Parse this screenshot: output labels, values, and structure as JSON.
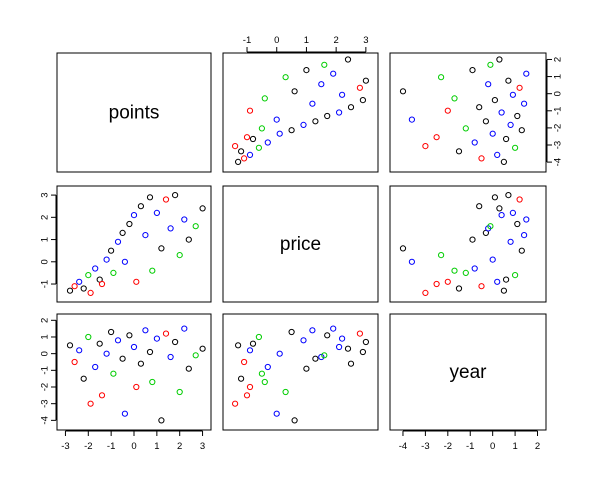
{
  "chart_data": {
    "type": "scatter",
    "kind": "scatterplot-matrix",
    "variables": [
      "points",
      "price",
      "year"
    ],
    "diagonal_labels": {
      "points": "points",
      "price": "price",
      "year": "year"
    },
    "ranges": {
      "points": [
        -3.1,
        3.1
      ],
      "price": [
        -1.6,
        3.2
      ],
      "year": [
        -4.3,
        2.1
      ]
    },
    "ticks": {
      "points": {
        "values": [
          -3,
          -2,
          -1,
          0,
          1,
          2,
          3
        ],
        "labels": [
          "-3",
          "-2",
          "-1",
          "0",
          "1",
          "2",
          "3"
        ]
      },
      "price": {
        "values": [
          -1,
          0,
          1,
          2,
          3
        ],
        "labels": [
          "-1",
          "0",
          "1",
          "2",
          "3"
        ]
      },
      "year": {
        "values": [
          -4,
          -3,
          -2,
          -1,
          0,
          1,
          2
        ],
        "labels": [
          "-4",
          "-3",
          "-2",
          "-1",
          "0",
          "1",
          "2"
        ]
      }
    },
    "axes_shown": {
      "bottom": [
        "points",
        null,
        "year"
      ],
      "top": [
        null,
        "price",
        null
      ],
      "left": [
        null,
        "price",
        "year"
      ],
      "right": [
        "year",
        null,
        null
      ]
    },
    "point_colors": [
      "#000000",
      "#ff0000",
      "#00cd00",
      "#0000ff"
    ],
    "marker": "open-circle",
    "grid": false,
    "legend": "none",
    "samples": [
      {
        "points": -2.8,
        "price": -1.3,
        "year": 0.5,
        "group": 0
      },
      {
        "points": -2.6,
        "price": -1.1,
        "year": -0.5,
        "group": 1
      },
      {
        "points": -2.4,
        "price": -0.9,
        "year": 0.2,
        "group": 3
      },
      {
        "points": -2.2,
        "price": -1.2,
        "year": -1.5,
        "group": 0
      },
      {
        "points": -2.0,
        "price": -0.6,
        "year": 1.0,
        "group": 2
      },
      {
        "points": -1.9,
        "price": -1.4,
        "year": -3.0,
        "group": 1
      },
      {
        "points": -1.7,
        "price": -0.3,
        "year": -0.8,
        "group": 3
      },
      {
        "points": -1.5,
        "price": -0.8,
        "year": 0.6,
        "group": 0
      },
      {
        "points": -1.4,
        "price": -1.0,
        "year": -2.5,
        "group": 1
      },
      {
        "points": -1.2,
        "price": 0.1,
        "year": 0.0,
        "group": 3
      },
      {
        "points": -1.0,
        "price": 0.5,
        "year": 1.3,
        "group": 0
      },
      {
        "points": -0.9,
        "price": -0.5,
        "year": -1.2,
        "group": 2
      },
      {
        "points": -0.7,
        "price": 0.9,
        "year": 0.8,
        "group": 3
      },
      {
        "points": -0.5,
        "price": 1.3,
        "year": -0.3,
        "group": 0
      },
      {
        "points": -0.4,
        "price": 0.0,
        "year": -3.6,
        "group": 3
      },
      {
        "points": -0.2,
        "price": 1.7,
        "year": 1.1,
        "group": 0
      },
      {
        "points": 0.0,
        "price": 2.1,
        "year": 0.4,
        "group": 3
      },
      {
        "points": 0.1,
        "price": -0.9,
        "year": -2.0,
        "group": 1
      },
      {
        "points": 0.3,
        "price": 2.5,
        "year": -0.6,
        "group": 0
      },
      {
        "points": 0.5,
        "price": 1.2,
        "year": 1.4,
        "group": 3
      },
      {
        "points": 0.7,
        "price": 2.9,
        "year": 0.1,
        "group": 0
      },
      {
        "points": 0.8,
        "price": -0.4,
        "year": -1.7,
        "group": 2
      },
      {
        "points": 1.0,
        "price": 2.2,
        "year": 0.9,
        "group": 3
      },
      {
        "points": 1.2,
        "price": 0.6,
        "year": -4.0,
        "group": 0
      },
      {
        "points": 1.4,
        "price": 2.8,
        "year": 1.2,
        "group": 1
      },
      {
        "points": 1.6,
        "price": 1.5,
        "year": -0.2,
        "group": 3
      },
      {
        "points": 1.8,
        "price": 3.0,
        "year": 0.7,
        "group": 0
      },
      {
        "points": 2.0,
        "price": 0.3,
        "year": -2.3,
        "group": 2
      },
      {
        "points": 2.2,
        "price": 1.9,
        "year": 1.5,
        "group": 3
      },
      {
        "points": 2.4,
        "price": 1.0,
        "year": -0.9,
        "group": 0
      },
      {
        "points": 2.7,
        "price": 1.6,
        "year": -0.1,
        "group": 2
      },
      {
        "points": 3.0,
        "price": 2.4,
        "year": 0.3,
        "group": 0
      }
    ]
  }
}
